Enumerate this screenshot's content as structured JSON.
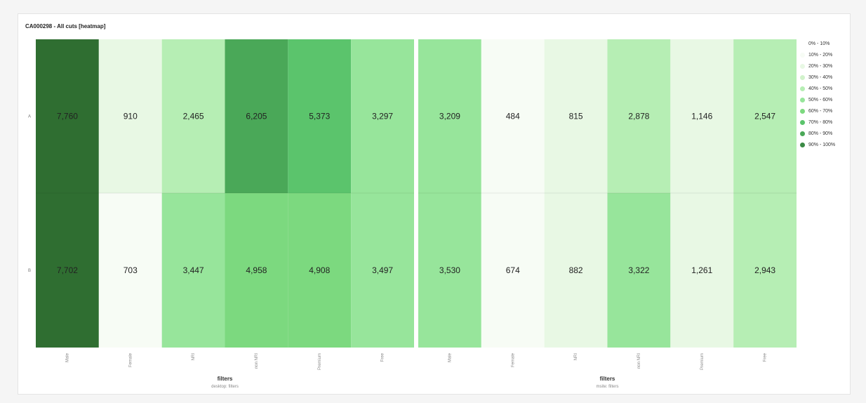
{
  "title": "CA000298 - All cuts [heatmap]",
  "colors": {
    "scale": [
      "#ffffff",
      "#f7fcf5",
      "#e8f8e4",
      "#d1f2cb",
      "#b6eeb4",
      "#97e59b",
      "#7cd97f",
      "#5bc46c",
      "#4aa858",
      "#3b8a45",
      "#2f6e31"
    ]
  },
  "legend": [
    "0% - 10%",
    "10% - 20%",
    "20% - 30%",
    "30% - 40%",
    "40% - 50%",
    "50% - 60%",
    "60% - 70%",
    "70% - 80%",
    "80% - 90%",
    "90% - 100%"
  ],
  "chart_data": [
    {
      "type": "heatmap",
      "xlabel": "filters",
      "xsublabel": "desktop: filters",
      "rows": [
        "A",
        "B"
      ],
      "columns": [
        "Male",
        "Female",
        "NRI",
        "non NRI",
        "Premium",
        "Free"
      ],
      "values": [
        [
          7760,
          910,
          2465,
          6205,
          5373,
          3297
        ],
        [
          7702,
          703,
          3447,
          4958,
          4908,
          3497
        ]
      ],
      "display": [
        [
          "7,760",
          "910",
          "2,465",
          "6,205",
          "5,373",
          "3,297"
        ],
        [
          "7,702",
          "703",
          "3,447",
          "4,958",
          "4,908",
          "3,497"
        ]
      ],
      "color_bins": [
        [
          9,
          1,
          3,
          7,
          6,
          4
        ],
        [
          9,
          0,
          4,
          5,
          5,
          4
        ]
      ]
    },
    {
      "type": "heatmap",
      "xlabel": "filters",
      "xsublabel": "msite: filters",
      "rows": [
        "A",
        "B"
      ],
      "columns": [
        "Male",
        "Female",
        "NRI",
        "non NRI",
        "Premium",
        "Free"
      ],
      "values": [
        [
          3209,
          484,
          815,
          2878,
          1146,
          2547
        ],
        [
          3530,
          674,
          882,
          3322,
          1261,
          2943
        ]
      ],
      "display": [
        [
          "3,209",
          "484",
          "815",
          "2,878",
          "1,146",
          "2,547"
        ],
        [
          "3,530",
          "674",
          "882",
          "3,322",
          "1,261",
          "2,943"
        ]
      ],
      "color_bins": [
        [
          4,
          0,
          1,
          3,
          1,
          3
        ],
        [
          4,
          0,
          1,
          4,
          1,
          3
        ]
      ]
    }
  ]
}
